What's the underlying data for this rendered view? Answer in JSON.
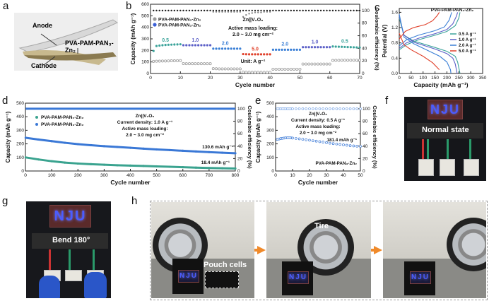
{
  "panel_labels": {
    "a": "a",
    "b": "b",
    "c": "c",
    "d": "d",
    "e": "e",
    "f": "f",
    "g": "g",
    "h": "h"
  },
  "panel_a": {
    "anode": "Anode",
    "electrolyte": "PVA-PAM-PAN₃-Zn₂",
    "cathode": "Cathode"
  },
  "panel_f": {
    "led_text": "NJU",
    "caption": "Normal state"
  },
  "panel_g": {
    "led_text": "NJU",
    "caption": "Bend 180°"
  },
  "panel_h": {
    "led_text": "NJU",
    "pouch_label": "Pouch cells",
    "tire_label": "Tire"
  },
  "colors": {
    "rate_0.5": "#3aa39a",
    "rate_1.0": "#5b5fc7",
    "rate_2.0": "#3a7fd6",
    "rate_5.0": "#e0402a",
    "pan0": "#9a9a9a",
    "pan0_cycling": "#3aa38f",
    "pan3_cycling": "#3a78d6",
    "arrow": "#f08a2a"
  },
  "chart_data": [
    {
      "id": "b",
      "type": "scatter",
      "xlabel": "Cycle number",
      "ylabel": "Capacity (mAh g⁻¹)",
      "y2label": "Coulombic efficiency (%)",
      "xlim": [
        0,
        70
      ],
      "ylim": [
        0,
        600
      ],
      "y2lim": [
        0,
        110
      ],
      "xticks": [
        0,
        10,
        20,
        30,
        40,
        50,
        60,
        70
      ],
      "yticks": [
        0,
        100,
        200,
        300,
        400,
        500,
        600
      ],
      "y2ticks": [
        0,
        20,
        40,
        60,
        80,
        100
      ],
      "legend": [
        "PVA-PAM-PAN₀-Zn₂",
        "PVA-PAM-PAN₃-Zn₂"
      ],
      "annotations": [
        "Zn||V₂O₅",
        "Active mass loading:",
        "2.0 ~ 3.0 mg cm⁻²",
        "Unit: A g⁻¹"
      ],
      "rate_labels": [
        "0.5",
        "1.0",
        "2.0",
        "5.0",
        "2.0",
        "1.0",
        "0.5"
      ],
      "rates": [
        0.5,
        1.0,
        2.0,
        5.0,
        2.0,
        1.0,
        0.5
      ],
      "series": [
        {
          "name": "PVA-PAM-PAN₀-Zn₂",
          "axis": "left",
          "values": [
            105,
            106,
            107,
            108,
            108,
            109,
            110,
            110,
            111,
            112,
            86,
            85,
            85,
            85,
            85,
            85,
            85,
            85,
            85,
            85,
            42,
            41,
            40,
            40,
            40,
            40,
            40,
            40,
            40,
            40,
            12,
            11,
            11,
            10,
            10,
            10,
            10,
            10,
            10,
            10,
            37,
            37,
            37,
            37,
            37,
            37,
            37,
            37,
            37,
            37,
            82,
            82,
            82,
            82,
            82,
            82,
            82,
            82,
            82,
            82,
            113,
            114,
            114,
            115,
            115,
            115,
            115,
            115,
            115,
            115
          ]
        },
        {
          "name": "PVA-PAM-PAN₃-Zn₂",
          "axis": "left",
          "values": [
            195,
            238,
            242,
            245,
            247,
            249,
            250,
            251,
            252,
            253,
            245,
            245,
            245,
            245,
            245,
            245,
            245,
            245,
            245,
            245,
            215,
            215,
            215,
            215,
            215,
            215,
            215,
            215,
            215,
            215,
            168,
            167,
            166,
            166,
            166,
            166,
            166,
            166,
            166,
            166,
            206,
            206,
            206,
            206,
            206,
            206,
            206,
            206,
            206,
            206,
            228,
            228,
            228,
            228,
            228,
            228,
            228,
            228,
            228,
            228,
            234,
            233,
            232,
            231,
            230,
            229,
            228,
            227,
            226,
            225
          ]
        },
        {
          "name": "PVA-PAM-PAN₀-Zn₂ CE",
          "axis": "right",
          "values": [
            100,
            100,
            100,
            100,
            100,
            100,
            100,
            100,
            100,
            100,
            100,
            100,
            100,
            100,
            100,
            100,
            100,
            100,
            100,
            100,
            98,
            98,
            98,
            98,
            98,
            98,
            98,
            98,
            98,
            98,
            90,
            93,
            95,
            96,
            97,
            97,
            97,
            98,
            98,
            98,
            100,
            100,
            100,
            100,
            100,
            100,
            100,
            100,
            100,
            100,
            100,
            100,
            100,
            100,
            100,
            100,
            100,
            100,
            100,
            100,
            100,
            100,
            100,
            100,
            100,
            100,
            100,
            100,
            100,
            100
          ]
        },
        {
          "name": "PVA-PAM-PAN₃-Zn₂ CE",
          "axis": "right",
          "values": [
            100,
            100,
            100,
            100,
            100,
            100,
            100,
            100,
            100,
            100,
            100,
            100,
            100,
            100,
            100,
            100,
            100,
            100,
            100,
            100,
            100,
            100,
            100,
            100,
            100,
            100,
            100,
            100,
            100,
            100,
            100,
            100,
            100,
            100,
            100,
            100,
            100,
            100,
            100,
            100,
            100,
            100,
            100,
            100,
            100,
            100,
            100,
            100,
            100,
            100,
            100,
            100,
            100,
            100,
            100,
            100,
            100,
            100,
            100,
            100,
            100,
            100,
            100,
            100,
            100,
            100,
            100,
            100,
            100,
            100
          ]
        }
      ]
    },
    {
      "id": "c",
      "type": "line",
      "title": "PVA-PAM-PAN₃-Zn₂",
      "xlabel": "Capacity (mAh g⁻¹)",
      "ylabel": "Potential (V)",
      "xlim": [
        0,
        350
      ],
      "ylim": [
        0,
        1.7
      ],
      "xticks": [
        0,
        50,
        100,
        150,
        200,
        250,
        300,
        350
      ],
      "yticks": [
        0.0,
        0.4,
        0.8,
        1.2,
        1.6
      ],
      "legend_position": "right",
      "series": [
        {
          "name": "0.5 A g⁻¹",
          "color": "#3aa39a",
          "charge": [
            [
              0,
              0.62
            ],
            [
              30,
              0.75
            ],
            [
              80,
              0.88
            ],
            [
              150,
              1.0
            ],
            [
              200,
              1.1
            ],
            [
              235,
              1.25
            ],
            [
              250,
              1.45
            ],
            [
              255,
              1.6
            ]
          ],
          "discharge": [
            [
              0,
              1.45
            ],
            [
              20,
              1.0
            ],
            [
              60,
              0.85
            ],
            [
              150,
              0.68
            ],
            [
              200,
              0.58
            ],
            [
              235,
              0.45
            ],
            [
              245,
              0.3
            ],
            [
              255,
              0.0
            ]
          ]
        },
        {
          "name": "1.0 A g⁻¹",
          "color": "#5b5fc7",
          "charge": [
            [
              0,
              0.66
            ],
            [
              30,
              0.8
            ],
            [
              80,
              0.92
            ],
            [
              150,
              1.04
            ],
            [
              200,
              1.15
            ],
            [
              225,
              1.3
            ],
            [
              240,
              1.5
            ],
            [
              245,
              1.6
            ]
          ],
          "discharge": [
            [
              0,
              1.5
            ],
            [
              20,
              1.0
            ],
            [
              60,
              0.82
            ],
            [
              150,
              0.64
            ],
            [
              200,
              0.52
            ],
            [
              225,
              0.4
            ],
            [
              235,
              0.25
            ],
            [
              243,
              0.0
            ]
          ]
        },
        {
          "name": "2.0 A g⁻¹",
          "color": "#3a7fd6",
          "charge": [
            [
              0,
              0.72
            ],
            [
              30,
              0.88
            ],
            [
              80,
              1.0
            ],
            [
              150,
              1.12
            ],
            [
              190,
              1.22
            ],
            [
              210,
              1.4
            ],
            [
              220,
              1.6
            ]
          ],
          "discharge": [
            [
              0,
              1.55
            ],
            [
              20,
              0.95
            ],
            [
              60,
              0.78
            ],
            [
              120,
              0.6
            ],
            [
              170,
              0.45
            ],
            [
              200,
              0.3
            ],
            [
              215,
              0.1
            ],
            [
              217,
              0.0
            ]
          ]
        },
        {
          "name": "5.0 A g⁻¹",
          "color": "#e0402a",
          "charge": [
            [
              0,
              0.9
            ],
            [
              25,
              1.1
            ],
            [
              60,
              1.2
            ],
            [
              110,
              1.28
            ],
            [
              140,
              1.38
            ],
            [
              160,
              1.52
            ],
            [
              168,
              1.6
            ]
          ],
          "discharge": [
            [
              0,
              1.05
            ],
            [
              20,
              0.75
            ],
            [
              50,
              0.62
            ],
            [
              100,
              0.45
            ],
            [
              140,
              0.28
            ],
            [
              168,
              0.1
            ]
          ]
        }
      ]
    },
    {
      "id": "d",
      "type": "scatter",
      "xlabel": "Cycle number",
      "ylabel": "Capacity (mAh g⁻¹)",
      "y2label": "Coulombic efficiency (%)",
      "xlim": [
        0,
        800
      ],
      "ylim": [
        0,
        500
      ],
      "y2lim": [
        0,
        109
      ],
      "xticks": [
        0,
        100,
        200,
        300,
        400,
        500,
        600,
        700,
        800
      ],
      "yticks": [
        0,
        100,
        200,
        300,
        400,
        500
      ],
      "y2ticks": [
        0,
        20,
        40,
        60,
        80,
        100
      ],
      "legend": [
        "PVA-PAM-PAN₀-Zn₂",
        "PVA-PAM-PAN₃-Zn₂"
      ],
      "annotations": [
        "Zn||V₂O₅",
        "Current density: 1.0 A g⁻¹",
        "Active mass loading:",
        "2.0 ~ 3.0 mg cm⁻²"
      ],
      "data_labels": [
        "130.6 mAh g⁻¹",
        "18.4 mAh g⁻¹"
      ],
      "x": [
        1,
        50,
        100,
        150,
        200,
        250,
        300,
        350,
        400,
        450,
        500,
        550,
        600,
        650,
        700,
        750,
        800
      ],
      "series": [
        {
          "name": "PVA-PAM-PAN₀-Zn₂",
          "axis": "left",
          "values": [
            100,
            85,
            72,
            62,
            55,
            50,
            46,
            42,
            40,
            37,
            34,
            31,
            28,
            25,
            22,
            20,
            18.4
          ]
        },
        {
          "name": "PVA-PAM-PAN₃-Zn₂",
          "axis": "left",
          "values": [
            245,
            232,
            220,
            208,
            198,
            190,
            183,
            177,
            171,
            165,
            159,
            154,
            149,
            144,
            139,
            135,
            130.6
          ]
        },
        {
          "name": "CE",
          "axis": "right",
          "values": [
            100,
            100,
            100,
            100,
            100,
            100,
            100,
            100,
            100,
            100,
            100,
            100,
            100,
            100,
            100,
            100,
            100
          ]
        }
      ]
    },
    {
      "id": "e",
      "type": "scatter",
      "xlabel": "Cycle number",
      "ylabel": "Capacity (mAh g⁻¹)",
      "y2label": "Coulombic efficiency (%)",
      "xlim": [
        0,
        50
      ],
      "ylim": [
        0,
        500
      ],
      "y2lim": [
        0,
        109
      ],
      "xticks": [
        0,
        10,
        20,
        30,
        40,
        50
      ],
      "yticks": [
        0,
        100,
        200,
        300,
        400,
        500
      ],
      "y2ticks": [
        0,
        20,
        40,
        60,
        80,
        100
      ],
      "annotations": [
        "Zn||V₂O₅",
        "Current density: 0.5 A g⁻¹",
        "Active mass loading:",
        "2.0 ~ 3.0 mg cm⁻²",
        "PVA-PAM-PAN₃-Zn₂"
      ],
      "data_labels": [
        "181.4 mAh g⁻¹"
      ],
      "x": [
        1,
        2,
        3,
        4,
        5,
        6,
        7,
        8,
        9,
        10,
        12,
        14,
        16,
        18,
        20,
        22,
        24,
        26,
        28,
        30,
        32,
        34,
        36,
        38,
        40,
        42,
        44,
        46,
        48,
        50
      ],
      "series": [
        {
          "name": "PVA-PAM-PAN₃-Zn₂",
          "axis": "left",
          "values": [
            233,
            236,
            239,
            241,
            243,
            244,
            245,
            245,
            244,
            243,
            240,
            237,
            234,
            230,
            227,
            223,
            220,
            216,
            213,
            209,
            205,
            202,
            199,
            196,
            193,
            190,
            187,
            185,
            183,
            181.4
          ]
        },
        {
          "name": "CE",
          "axis": "right",
          "values": [
            100,
            100,
            100,
            100,
            100,
            100,
            100,
            100,
            100,
            100,
            100,
            100,
            100,
            100,
            100,
            100,
            100,
            100,
            100,
            100,
            100,
            100,
            100,
            100,
            100,
            100,
            100,
            100,
            100,
            100
          ]
        }
      ]
    }
  ]
}
